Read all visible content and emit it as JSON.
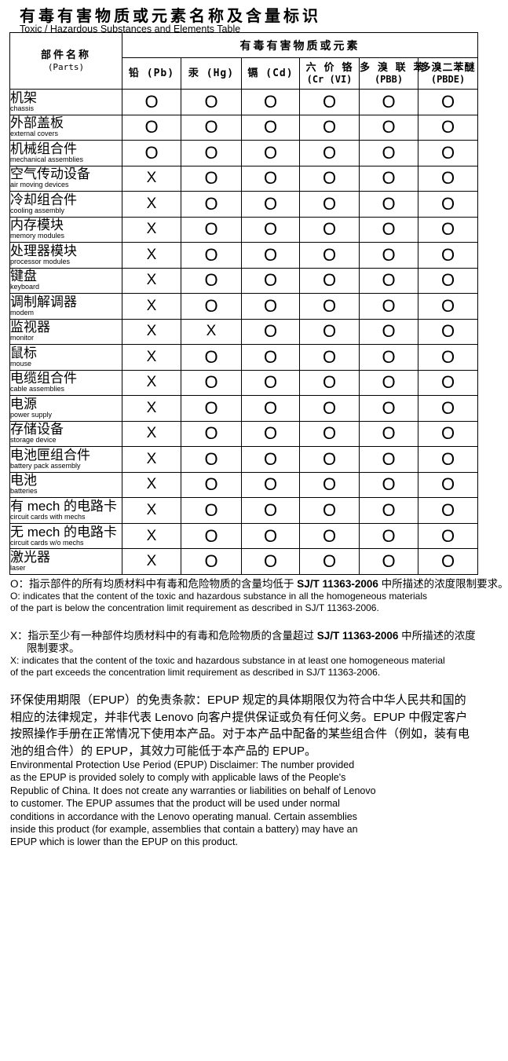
{
  "doc": {
    "title_cn": "有毒有害物质或元素名称及含量标识",
    "title_en": "Toxic / Hazardous Substances and Elements Table"
  },
  "table": {
    "parts_header_cn": "部件名称",
    "parts_header_en": "(Parts)",
    "substances_header": "有毒有害物质或元素",
    "columns": [
      {
        "id": "pb",
        "line1": "铅 (Pb)",
        "line2": ""
      },
      {
        "id": "hg",
        "line1": "汞 (Hg)",
        "line2": ""
      },
      {
        "id": "cd",
        "line1": "镉 (Cd)",
        "line2": ""
      },
      {
        "id": "crvi",
        "line1": "六 价 铬",
        "line2": "(Cr (VI)"
      },
      {
        "id": "pbb",
        "line1": "多 溴 联 苯",
        "line2": "(PBB)"
      },
      {
        "id": "pbde",
        "line1": "多溴二苯醚",
        "line2": "(PBDE)"
      }
    ],
    "rows": [
      {
        "cn": "机架",
        "en": "chassis",
        "values": [
          "O",
          "O",
          "O",
          "O",
          "O",
          "O"
        ]
      },
      {
        "cn": "外部盖板",
        "en": "external covers",
        "values": [
          "O",
          "O",
          "O",
          "O",
          "O",
          "O"
        ]
      },
      {
        "cn": "机械组合件",
        "en": "mechanical assemblies",
        "values": [
          "O",
          "O",
          "O",
          "O",
          "O",
          "O"
        ]
      },
      {
        "cn": "空气传动设备",
        "en": "air moving devices",
        "values": [
          "X",
          "O",
          "O",
          "O",
          "O",
          "O"
        ]
      },
      {
        "cn": "冷却组合件",
        "en": "cooling assembly",
        "values": [
          "X",
          "O",
          "O",
          "O",
          "O",
          "O"
        ]
      },
      {
        "cn": "内存模块",
        "en": "memory modules",
        "values": [
          "X",
          "O",
          "O",
          "O",
          "O",
          "O"
        ]
      },
      {
        "cn": "处理器模块",
        "en": "processor modules",
        "values": [
          "X",
          "O",
          "O",
          "O",
          "O",
          "O"
        ]
      },
      {
        "cn": "键盘",
        "en": "keyboard",
        "values": [
          "X",
          "O",
          "O",
          "O",
          "O",
          "O"
        ]
      },
      {
        "cn": "调制解调器",
        "en": "modem",
        "values": [
          "X",
          "O",
          "O",
          "O",
          "O",
          "O"
        ]
      },
      {
        "cn": "监视器",
        "en": "monitor",
        "values": [
          "X",
          "X",
          "O",
          "O",
          "O",
          "O"
        ]
      },
      {
        "cn": "鼠标",
        "en": "mouse",
        "values": [
          "X",
          "O",
          "O",
          "O",
          "O",
          "O"
        ]
      },
      {
        "cn": "电缆组合件",
        "en": "cable assemblies",
        "values": [
          "X",
          "O",
          "O",
          "O",
          "O",
          "O"
        ]
      },
      {
        "cn": "电源",
        "en": "power supply",
        "values": [
          "X",
          "O",
          "O",
          "O",
          "O",
          "O"
        ]
      },
      {
        "cn": "存储设备",
        "en": "storage device",
        "values": [
          "X",
          "O",
          "O",
          "O",
          "O",
          "O"
        ]
      },
      {
        "cn": "电池匣组合件",
        "en": "battery pack assembly",
        "values": [
          "X",
          "O",
          "O",
          "O",
          "O",
          "O"
        ]
      },
      {
        "cn": "电池",
        "en": "batteries",
        "values": [
          "X",
          "O",
          "O",
          "O",
          "O",
          "O"
        ]
      },
      {
        "cn": "有 mech 的电路卡",
        "en": "circuit cards with mechs",
        "values": [
          "X",
          "O",
          "O",
          "O",
          "O",
          "O"
        ]
      },
      {
        "cn": "无 mech 的电路卡",
        "en": "circuit cards w/o mechs",
        "values": [
          "X",
          "O",
          "O",
          "O",
          "O",
          "O"
        ]
      },
      {
        "cn": "激光器",
        "en": "laser",
        "values": [
          "X",
          "O",
          "O",
          "O",
          "O",
          "O"
        ]
      }
    ]
  },
  "notes": {
    "o_cn_prefix": "O：指示部件的所有均质材料中有毒和危险物质的含量均低于 ",
    "o_code": "SJ/T 11363-2006",
    "o_cn_suffix": " 中所描述的浓度限制要求。",
    "o_en": "O: indicates that the content of the toxic and hazardous substance in all the homogeneous materials\nof the part is below the concentration limit requirement as described in SJ/T 11363-2006.",
    "x_cn_prefix": "X：指示至少有一种部件均质材料中的有毒和危险物质的含量超过 ",
    "x_code": "SJ/T 11363-2006",
    "x_cn_suffix": " 中所描述的浓度",
    "x_cn_line2": "限制要求。",
    "x_en": "X: indicates that the content of the toxic and hazardous substance in at least one homogeneous material\nof the part exceeds the concentration limit requirement as described in SJ/T 11363-2006."
  },
  "epup": {
    "cn": "环保使用期限（EPUP）的免责条款：EPUP 规定的具体期限仅为符合中华人民共和国的\n相应的法律规定，并非代表 Lenovo 向客户提供保证或负有任何义务。EPUP 中假定客户\n按照操作手册在正常情况下使用本产品。对于本产品中配备的某些组合件（例如，装有电\n池的组合件）的 EPUP，其效力可能低于本产品的 EPUP。",
    "en": "Environmental Protection Use Period (EPUP) Disclaimer: The number provided\nas the EPUP is provided solely to comply with applicable laws of the People's\nRepublic of China.  It does not create any warranties or liabilities on behalf of Lenovo\nto customer.  The EPUP assumes that the product will be used under normal\nconditions in accordance with the Lenovo operating manual.  Certain assemblies\ninside this product (for example, assemblies that contain a battery) may have an\nEPUP which is lower than the EPUP on this product."
  }
}
